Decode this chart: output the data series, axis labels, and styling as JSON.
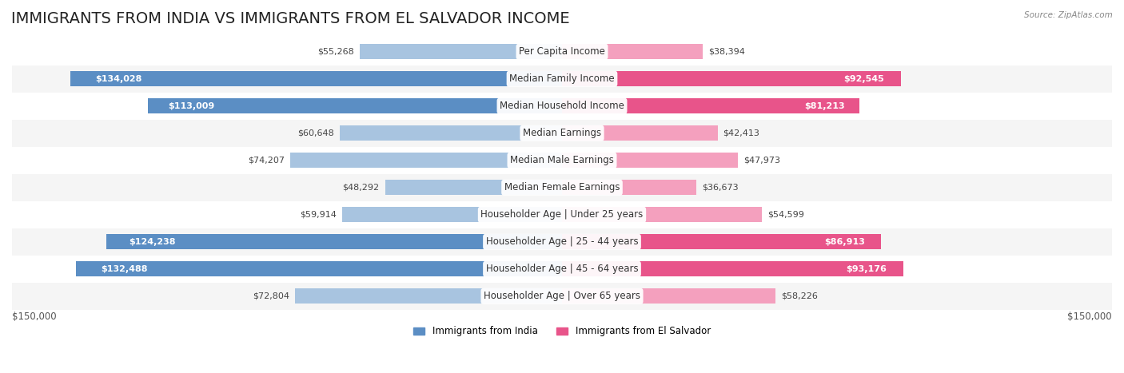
{
  "title": "IMMIGRANTS FROM INDIA VS IMMIGRANTS FROM EL SALVADOR INCOME",
  "source": "Source: ZipAtlas.com",
  "categories": [
    "Per Capita Income",
    "Median Family Income",
    "Median Household Income",
    "Median Earnings",
    "Median Male Earnings",
    "Median Female Earnings",
    "Householder Age | Under 25 years",
    "Householder Age | 25 - 44 years",
    "Householder Age | 45 - 64 years",
    "Householder Age | Over 65 years"
  ],
  "india_values": [
    55268,
    134028,
    113009,
    60648,
    74207,
    48292,
    59914,
    124238,
    132488,
    72804
  ],
  "salvador_values": [
    38394,
    92545,
    81213,
    42413,
    47973,
    36673,
    54599,
    86913,
    93176,
    58226
  ],
  "india_color_light": "#a8c4e0",
  "india_color_dark": "#5b8ec4",
  "salvador_color_light": "#f4a0be",
  "salvador_color_dark": "#e8548a",
  "max_value": 150000,
  "india_label": "Immigrants from India",
  "salvador_label": "Immigrants from El Salvador",
  "axis_label_left": "$150,000",
  "axis_label_right": "$150,000",
  "background_color": "#ffffff",
  "row_bg_odd": "#f5f5f5",
  "row_bg_even": "#ffffff",
  "bar_height": 0.55,
  "title_fontsize": 14,
  "label_fontsize": 8.5,
  "value_fontsize": 8
}
